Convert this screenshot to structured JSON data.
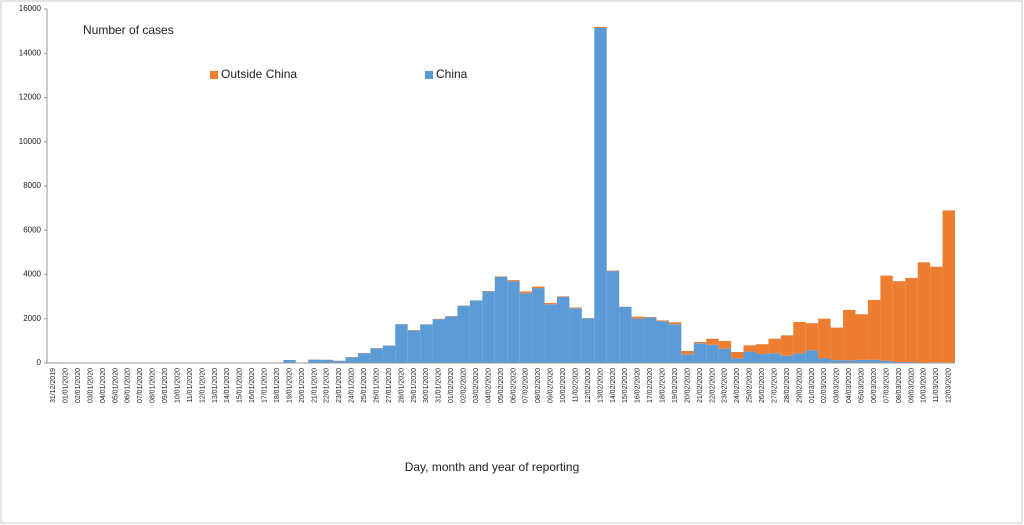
{
  "chart_data": {
    "type": "stacked-bar",
    "title": "Number of cases",
    "x_label": "Day, month and year of reporting",
    "categories": [
      "31/12/2019",
      "01/01/2020",
      "02/01/2020",
      "03/01/2020",
      "04/01/2020",
      "05/01/2020",
      "06/01/2020",
      "07/01/2020",
      "08/01/2020",
      "09/01/2020",
      "10/01/2020",
      "11/01/2020",
      "12/01/2020",
      "13/01/2020",
      "14/01/2020",
      "15/01/2020",
      "16/01/2020",
      "17/01/2020",
      "18/01/2020",
      "19/01/2020",
      "20/01/2020",
      "21/01/2020",
      "22/01/2020",
      "23/01/2020",
      "24/01/2020",
      "25/01/2020",
      "26/01/2020",
      "27/01/2020",
      "28/01/2020",
      "29/01/2020",
      "30/01/2020",
      "31/01/2020",
      "01/02/2020",
      "02/02/2020",
      "03/02/2020",
      "04/02/2020",
      "05/02/2020",
      "06/02/2020",
      "07/02/2020",
      "08/02/2020",
      "09/02/2020",
      "10/02/2020",
      "11/02/2020",
      "12/02/2020",
      "13/02/2020",
      "14/02/2020",
      "15/02/2020",
      "16/02/2020",
      "17/02/2020",
      "18/02/2020",
      "19/02/2020",
      "20/02/2020",
      "21/02/2020",
      "22/02/2020",
      "23/02/2020",
      "24/02/2020",
      "25/02/2020",
      "26/02/2020",
      "27/02/2020",
      "28/02/2020",
      "29/02/2020",
      "01/03/2020",
      "02/03/2020",
      "03/03/2020",
      "04/03/2020",
      "05/03/2020",
      "06/03/2020",
      "07/03/2020",
      "08/03/2020",
      "09/03/2020",
      "10/03/2020",
      "11/03/2020",
      "12/03/2020"
    ],
    "series": [
      {
        "name": "China",
        "color": "#5b9bd5",
        "values": [
          27,
          0,
          0,
          17,
          0,
          15,
          0,
          0,
          0,
          0,
          0,
          0,
          0,
          0,
          0,
          0,
          0,
          4,
          17,
          136,
          19,
          151,
          140,
          97,
          259,
          441,
          665,
          787,
          1753,
          1466,
          1740,
          1980,
          2101,
          2590,
          2827,
          3233,
          3892,
          3697,
          3151,
          3387,
          2653,
          2984,
          2473,
          2022,
          15141,
          4156,
          2538,
          2007,
          2052,
          1890,
          1750,
          394,
          891,
          826,
          647,
          218,
          515,
          410,
          439,
          331,
          433,
          579,
          206,
          130,
          120,
          143,
          146,
          102,
          46,
          45,
          20,
          31,
          26
        ]
      },
      {
        "name": "Outside China",
        "color": "#ed7d31",
        "values": [
          0,
          0,
          0,
          0,
          0,
          0,
          0,
          0,
          0,
          0,
          0,
          0,
          0,
          1,
          0,
          1,
          0,
          1,
          1,
          1,
          4,
          3,
          9,
          8,
          14,
          12,
          11,
          4,
          6,
          22,
          7,
          17,
          16,
          7,
          3,
          19,
          24,
          51,
          81,
          68,
          63,
          28,
          36,
          9,
          50,
          20,
          5,
          86,
          28,
          36,
          90,
          150,
          60,
          270,
          350,
          280,
          285,
          440,
          660,
          920,
          1420,
          1220,
          1800,
          1470,
          2280,
          2060,
          2700,
          3850,
          3650,
          3800,
          4530,
          4320,
          6870
        ]
      }
    ],
    "ylim": [
      0,
      16000
    ],
    "yticks": [
      0,
      2000,
      4000,
      6000,
      8000,
      10000,
      12000,
      14000,
      16000
    ]
  }
}
